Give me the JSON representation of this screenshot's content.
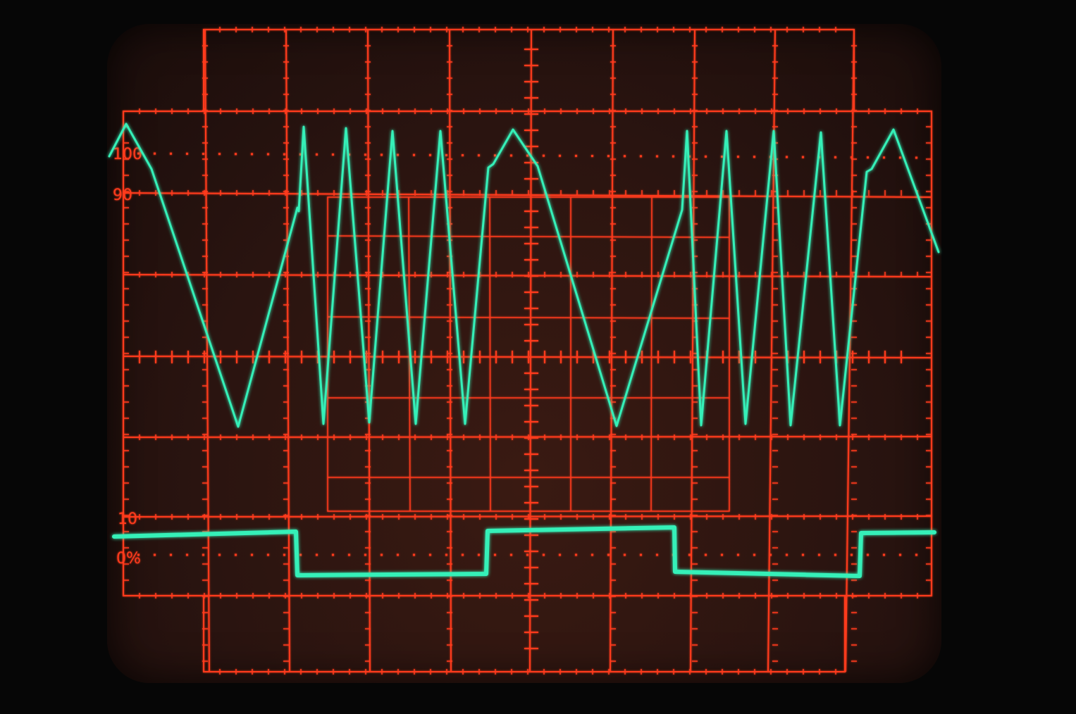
{
  "graticule": {
    "labels": {
      "pct100": "100",
      "pct90": "90",
      "pct10": "10",
      "pct0": "0%"
    },
    "color": "#ff3a1e"
  },
  "trace": {
    "color": "#35f0b8",
    "description_waveforms": [
      "triangle",
      "square"
    ]
  }
}
